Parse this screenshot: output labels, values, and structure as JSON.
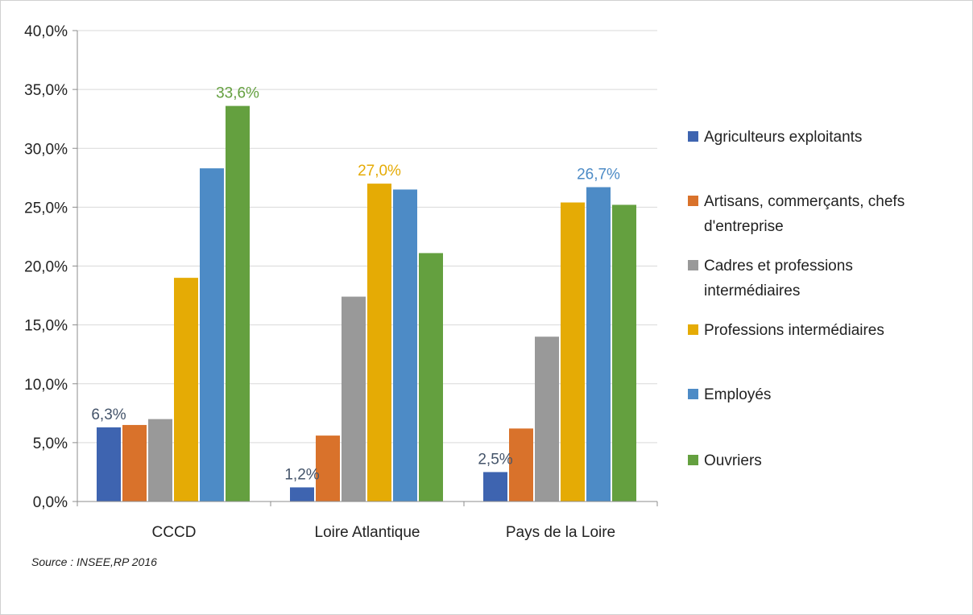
{
  "chart_data": {
    "type": "bar",
    "categories": [
      "CCCD",
      "Loire Atlantique",
      "Pays de la Loire"
    ],
    "series": [
      {
        "name": "Agriculteurs exploitants",
        "name_lines": [
          "Agriculteurs exploitants"
        ],
        "color": "#3e64b0",
        "values": [
          6.3,
          1.2,
          2.5
        ]
      },
      {
        "name": "Artisans, commerçants, chefs d'entreprise",
        "name_lines": [
          "Artisans, commerçants, chefs",
          "d'entreprise"
        ],
        "color": "#d9722b",
        "values": [
          6.5,
          5.6,
          6.2
        ]
      },
      {
        "name": "Cadres et professions intermédiaires",
        "name_lines": [
          "Cadres et professions",
          "intermédiaires"
        ],
        "color": "#999999",
        "values": [
          7.0,
          17.4,
          14.0
        ]
      },
      {
        "name": "Professions intermédiaires",
        "name_lines": [
          "Professions intermédiaires"
        ],
        "color": "#e5ab05",
        "values": [
          19.0,
          27.0,
          25.4
        ]
      },
      {
        "name": "Employés",
        "name_lines": [
          "Employés"
        ],
        "color": "#4d8bc6",
        "values": [
          28.3,
          26.5,
          26.7
        ]
      },
      {
        "name": "Ouvriers",
        "name_lines": [
          "Ouvriers"
        ],
        "color": "#64a03f",
        "values": [
          33.6,
          21.1,
          25.2
        ]
      }
    ],
    "y_ticks": [
      "0,0%",
      "5,0%",
      "10,0%",
      "15,0%",
      "20,0%",
      "25,0%",
      "30,0%",
      "35,0%",
      "40,0%"
    ],
    "ylim": [
      0,
      40
    ],
    "y_step": 5,
    "grid": true,
    "legend_position": "right",
    "data_labels": [
      {
        "series": 0,
        "category": 0,
        "text": "6,3%",
        "color": "#44546a"
      },
      {
        "series": 0,
        "category": 1,
        "text": "1,2%",
        "color": "#44546a"
      },
      {
        "series": 0,
        "category": 2,
        "text": "2,5%",
        "color": "#44546a"
      },
      {
        "series": 5,
        "category": 0,
        "text": "33,6%",
        "color": "#64a03f"
      },
      {
        "series": 3,
        "category": 1,
        "text": "27,0%",
        "color": "#e5ab05"
      },
      {
        "series": 4,
        "category": 2,
        "text": "26,7%",
        "color": "#4d8bc6"
      }
    ],
    "source": "Source : INSEE,RP 2016"
  }
}
